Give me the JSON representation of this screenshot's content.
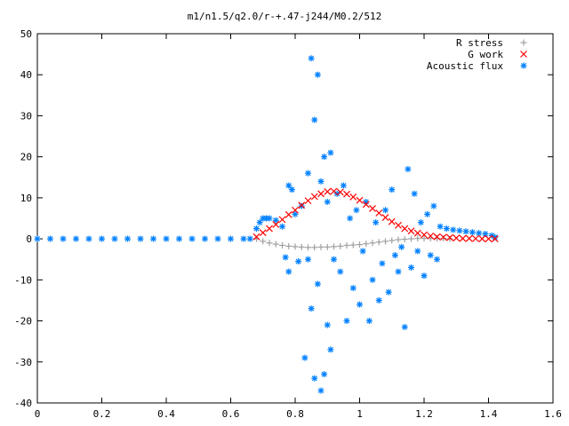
{
  "chart_data": {
    "type": "scatter",
    "title": "m1/n1.5/q2.0/r-+.47-j244/M0.2/512",
    "xlabel": "",
    "ylabel": "",
    "xlim": [
      0,
      1.6
    ],
    "ylim": [
      -40,
      50
    ],
    "grid": false,
    "legend_position": "top-right",
    "x_ticks": [
      "0",
      "0.2",
      "0.4",
      "0.6",
      "0.8",
      "1",
      "1.2",
      "1.4",
      "1.6"
    ],
    "y_ticks": [
      "-40",
      "-30",
      "-20",
      "-10",
      "0",
      "10",
      "20",
      "30",
      "40",
      "50"
    ],
    "series": [
      {
        "name": "R stress",
        "marker": "plus",
        "color": "#a0a0a0",
        "x": [
          0.68,
          0.7,
          0.72,
          0.74,
          0.76,
          0.78,
          0.8,
          0.82,
          0.84,
          0.86,
          0.88,
          0.9,
          0.92,
          0.94,
          0.96,
          0.98,
          1.0,
          1.02,
          1.04,
          1.06,
          1.08,
          1.1,
          1.12,
          1.14,
          1.16,
          1.18,
          1.2,
          1.22,
          1.24,
          1.26,
          1.28
        ],
        "y": [
          0,
          -0.6,
          -1.0,
          -1.3,
          -1.6,
          -1.8,
          -1.9,
          -2.0,
          -2.1,
          -2.1,
          -2.0,
          -2.0,
          -1.9,
          -1.8,
          -1.6,
          -1.5,
          -1.4,
          -1.2,
          -1.0,
          -0.8,
          -0.6,
          -0.4,
          -0.2,
          -0.1,
          0,
          0.1,
          0.1,
          0.1,
          0.1,
          0.1,
          0
        ]
      },
      {
        "name": "G work",
        "marker": "cross",
        "color": "#ff0000",
        "x": [
          0.68,
          0.7,
          0.72,
          0.74,
          0.76,
          0.78,
          0.8,
          0.82,
          0.84,
          0.86,
          0.88,
          0.9,
          0.92,
          0.94,
          0.96,
          0.98,
          1.0,
          1.02,
          1.04,
          1.06,
          1.08,
          1.1,
          1.12,
          1.14,
          1.16,
          1.18,
          1.2,
          1.22,
          1.24,
          1.26,
          1.28,
          1.3,
          1.32,
          1.34,
          1.36,
          1.38,
          1.4,
          1.42
        ],
        "y": [
          0.5,
          1.5,
          2.5,
          3.5,
          4.7,
          5.9,
          7.0,
          8.2,
          9.3,
          10.3,
          11.0,
          11.5,
          11.6,
          11.4,
          10.9,
          10.2,
          9.4,
          8.4,
          7.4,
          6.3,
          5.2,
          4.2,
          3.3,
          2.5,
          1.9,
          1.4,
          1.0,
          0.7,
          0.5,
          0.4,
          0.3,
          0.2,
          0.1,
          0.1,
          0.05,
          0,
          0,
          0
        ]
      },
      {
        "name": "Acoustic flux",
        "marker": "star",
        "color": "#0080ff",
        "x": [
          0.0,
          0.04,
          0.08,
          0.12,
          0.16,
          0.2,
          0.24,
          0.28,
          0.32,
          0.36,
          0.4,
          0.44,
          0.48,
          0.52,
          0.56,
          0.6,
          0.64,
          0.66,
          0.68,
          0.69,
          0.7,
          0.71,
          0.72,
          0.74,
          0.76,
          0.77,
          0.78,
          0.78,
          0.79,
          0.8,
          0.81,
          0.82,
          0.83,
          0.84,
          0.84,
          0.85,
          0.85,
          0.86,
          0.86,
          0.87,
          0.87,
          0.88,
          0.88,
          0.89,
          0.89,
          0.9,
          0.9,
          0.91,
          0.91,
          0.92,
          0.93,
          0.94,
          0.95,
          0.96,
          0.97,
          0.98,
          0.99,
          1.0,
          1.01,
          1.02,
          1.03,
          1.04,
          1.05,
          1.06,
          1.07,
          1.08,
          1.09,
          1.1,
          1.11,
          1.12,
          1.13,
          1.14,
          1.15,
          1.16,
          1.17,
          1.18,
          1.19,
          1.2,
          1.21,
          1.22,
          1.23,
          1.24,
          1.25,
          1.27,
          1.29,
          1.31,
          1.33,
          1.35,
          1.37,
          1.39,
          1.41,
          1.42
        ],
        "y": [
          0,
          0,
          0,
          0,
          0,
          0,
          0,
          0,
          0,
          0,
          0,
          0,
          0,
          0,
          0,
          0,
          0,
          0,
          2.5,
          4.0,
          5.0,
          5.0,
          5.0,
          4.5,
          3.0,
          -4.5,
          13.0,
          -8.0,
          12.0,
          6.0,
          -5.5,
          8.0,
          -29.0,
          16.0,
          -5.0,
          44.0,
          -17.0,
          -34.0,
          29.0,
          -11.0,
          40.0,
          -37.0,
          14.0,
          -33.0,
          20.0,
          -21.0,
          9.0,
          21.0,
          -27.0,
          -5.0,
          11.0,
          -8.0,
          13.0,
          -20.0,
          5.0,
          -12.0,
          7.0,
          -16.0,
          -3.0,
          9.0,
          -20.0,
          -10.0,
          4.0,
          -15.0,
          -6.0,
          7.0,
          -13.0,
          12.0,
          -4.0,
          -8.0,
          -2.0,
          -21.5,
          17.0,
          -7.0,
          11.0,
          -3.0,
          4.0,
          -9.0,
          6.0,
          -4.0,
          8.0,
          -5.0,
          3.0,
          2.5,
          2.2,
          2.0,
          1.8,
          1.6,
          1.4,
          1.2,
          0.8,
          0.4
        ]
      }
    ]
  }
}
